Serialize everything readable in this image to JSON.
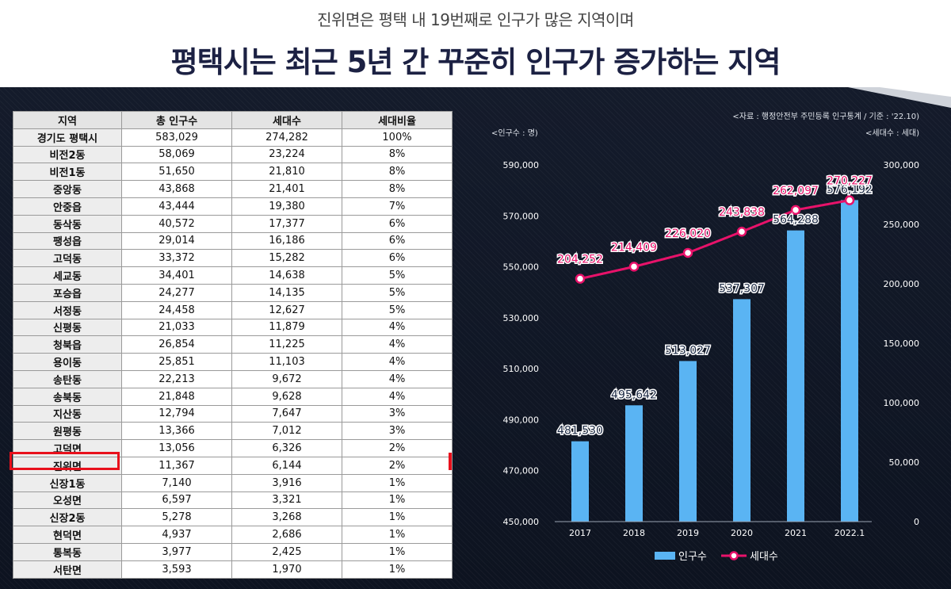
{
  "header": {
    "subtitle": "진위면은 평택 내 19번째로 인구가 많은 지역이며",
    "title": "평택시는 최근 5년 간 꾸준히 인구가 증가하는 지역"
  },
  "table": {
    "columns": [
      "지역",
      "총 인구수",
      "세대수",
      "세대비율"
    ],
    "rows": [
      [
        "경기도 평택시",
        "583,029",
        "274,282",
        "100%"
      ],
      [
        "비전2동",
        "58,069",
        "23,224",
        "8%"
      ],
      [
        "비전1동",
        "51,650",
        "21,810",
        "8%"
      ],
      [
        "중앙동",
        "43,868",
        "21,401",
        "8%"
      ],
      [
        "안중읍",
        "43,444",
        "19,380",
        "7%"
      ],
      [
        "동삭동",
        "40,572",
        "17,377",
        "6%"
      ],
      [
        "팽성읍",
        "29,014",
        "16,186",
        "6%"
      ],
      [
        "고덕동",
        "33,372",
        "15,282",
        "6%"
      ],
      [
        "세교동",
        "34,401",
        "14,638",
        "5%"
      ],
      [
        "포승읍",
        "24,277",
        "14,135",
        "5%"
      ],
      [
        "서정동",
        "24,458",
        "12,627",
        "5%"
      ],
      [
        "신평동",
        "21,033",
        "11,879",
        "4%"
      ],
      [
        "청북읍",
        "26,854",
        "11,225",
        "4%"
      ],
      [
        "용이동",
        "25,851",
        "11,103",
        "4%"
      ],
      [
        "송탄동",
        "22,213",
        "9,672",
        "4%"
      ],
      [
        "송북동",
        "21,848",
        "9,628",
        "4%"
      ],
      [
        "지산동",
        "12,794",
        "7,647",
        "3%"
      ],
      [
        "원평동",
        "13,366",
        "7,012",
        "3%"
      ],
      [
        "고덕면",
        "13,056",
        "6,326",
        "2%"
      ],
      [
        "진위면",
        "11,367",
        "6,144",
        "2%"
      ],
      [
        "신장1동",
        "7,140",
        "3,916",
        "1%"
      ],
      [
        "오성면",
        "6,597",
        "3,321",
        "1%"
      ],
      [
        "신장2동",
        "5,278",
        "3,268",
        "1%"
      ],
      [
        "현덕면",
        "4,937",
        "2,686",
        "1%"
      ],
      [
        "통복동",
        "3,977",
        "2,425",
        "1%"
      ],
      [
        "서탄면",
        "3,593",
        "1,970",
        "1%"
      ]
    ],
    "highlighted_row": "진위면",
    "highlight_color": "#e8101c"
  },
  "chart_data": {
    "type": "bar",
    "source": "<자료 : 행정안전부 주민등록 인구통계 / 기준 : '22.10)",
    "left_unit": "<인구수 : 명)",
    "right_unit": "<세대수 : 세대)",
    "categories": [
      "2017",
      "2018",
      "2019",
      "2020",
      "2021",
      "2022.1"
    ],
    "series": [
      {
        "name": "인구수",
        "type": "bar",
        "axis": "left",
        "color": "#5ab4f3",
        "values": [
          481530,
          495642,
          513027,
          537307,
          564288,
          576192
        ],
        "labels": [
          "481,530",
          "495,642",
          "513,027",
          "537,307",
          "564,288",
          "576,192"
        ]
      },
      {
        "name": "세대수",
        "type": "line",
        "axis": "right",
        "color": "#e8126a",
        "values": [
          204252,
          214409,
          226020,
          243838,
          262097,
          270227
        ],
        "labels": [
          "204,252",
          "214,409",
          "226,020",
          "243,838",
          "262,097",
          "270,227"
        ]
      }
    ],
    "left_axis": {
      "min": 450000,
      "max": 590000,
      "ticks": [
        "590,000",
        "570,000",
        "550,000",
        "530,000",
        "510,000",
        "490,000",
        "470,000",
        "450,000"
      ],
      "tick_values": [
        590000,
        570000,
        550000,
        530000,
        510000,
        490000,
        470000,
        450000
      ]
    },
    "right_axis": {
      "min": 0,
      "max": 300000,
      "ticks": [
        "300,000",
        "250,000",
        "200,000",
        "150,000",
        "100,000",
        "50,000",
        "0"
      ],
      "tick_values": [
        300000,
        250000,
        200000,
        150000,
        100000,
        50000,
        0
      ]
    },
    "grid": false,
    "legend": "bottom"
  }
}
